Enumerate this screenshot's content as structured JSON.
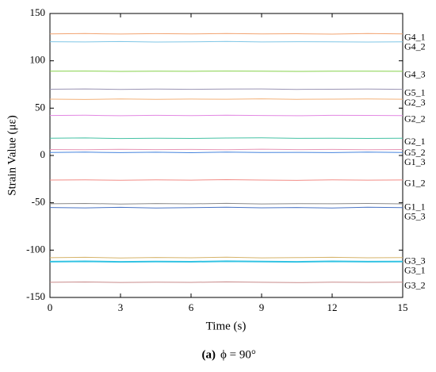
{
  "chart_data": {
    "type": "line",
    "xlabel": "Time (s)",
    "ylabel": "Strain Value (με)",
    "caption_label": "(a)",
    "caption_text": "ϕ = 90°",
    "x": [
      0,
      1.5,
      3,
      4.5,
      6,
      7.5,
      9,
      10.5,
      12,
      13.5,
      15
    ],
    "xlim": [
      0,
      15
    ],
    "xticks": [
      0,
      3,
      6,
      9,
      12,
      15
    ],
    "ylim": [
      -150,
      150
    ],
    "yticks": [
      -150,
      -100,
      -50,
      0,
      50,
      100,
      150
    ],
    "series": [
      {
        "name": "G4_1",
        "color": "#f2a472",
        "values": [
          128.5,
          128.8,
          128.3,
          128.7,
          128.4,
          128.9,
          128.5,
          128.6,
          128.2,
          128.8,
          128.5
        ]
      },
      {
        "name": "G4_2",
        "color": "#7fc6e6",
        "values": [
          120.2,
          119.9,
          120.3,
          119.8,
          120.1,
          120.4,
          119.9,
          120.2,
          120.0,
          119.8,
          120.1
        ]
      },
      {
        "name": "G4_3",
        "color": "#86d14a",
        "values": [
          89.0,
          89.2,
          88.8,
          89.1,
          88.9,
          89.2,
          89.0,
          88.8,
          89.1,
          89.0,
          88.9
        ]
      },
      {
        "name": "G5_1",
        "color": "#9a94b4",
        "values": [
          70.0,
          70.3,
          69.8,
          70.2,
          69.9,
          70.1,
          70.3,
          69.8,
          70.0,
          70.2,
          69.9
        ]
      },
      {
        "name": "G2_3",
        "color": "#f3b27a",
        "values": [
          59.5,
          59.2,
          59.7,
          59.3,
          59.6,
          59.4,
          59.8,
          59.3,
          59.5,
          59.7,
          59.4
        ]
      },
      {
        "name": "G2_2",
        "color": "#e388e3",
        "values": [
          42.2,
          42.5,
          42.0,
          42.4,
          42.1,
          42.6,
          42.2,
          42.0,
          42.4,
          42.3,
          42.1
        ]
      },
      {
        "name": "G2_1",
        "color": "#45c2a4",
        "values": [
          18.2,
          18.5,
          17.9,
          18.3,
          18.0,
          18.4,
          18.6,
          18.1,
          18.3,
          18.0,
          18.2
        ]
      },
      {
        "name": "G5_2",
        "color": "#e896b6",
        "values": [
          6.3,
          6.0,
          6.5,
          6.2,
          6.4,
          6.1,
          6.6,
          6.2,
          6.4,
          6.0,
          6.3
        ]
      },
      {
        "name": "G1_3",
        "color": "#4684de",
        "values": [
          3.2,
          3.5,
          3.0,
          3.4,
          2.9,
          3.6,
          3.1,
          3.3,
          3.0,
          3.5,
          3.2
        ]
      },
      {
        "name": "G1_2",
        "color": "#f28c86",
        "values": [
          -26.0,
          -25.7,
          -26.2,
          -25.8,
          -26.1,
          -25.6,
          -26.0,
          -26.3,
          -25.8,
          -26.1,
          -25.9
        ]
      },
      {
        "name": "G1_1",
        "color": "#8a8a8a",
        "values": [
          -51.0,
          -50.7,
          -51.3,
          -50.8,
          -51.1,
          -50.6,
          -51.2,
          -50.9,
          -51.0,
          -50.7,
          -51.1
        ]
      },
      {
        "name": "G5_3",
        "color": "#4a74c4",
        "values": [
          -55.0,
          -55.4,
          -54.8,
          -55.6,
          -55.1,
          -54.7,
          -55.3,
          -55.0,
          -55.5,
          -54.6,
          -55.1
        ]
      },
      {
        "name": "G3_3",
        "color": "#d6b46a",
        "values": [
          -108.0,
          -107.6,
          -108.3,
          -107.8,
          -108.1,
          -107.5,
          -108.2,
          -107.9,
          -107.6,
          -108.1,
          -107.9
        ]
      },
      {
        "name": "G3_1",
        "color": "#33c3e3",
        "values": [
          -112.2,
          -111.9,
          -112.4,
          -112.0,
          -112.3,
          -111.8,
          -112.1,
          -112.4,
          -111.9,
          -112.2,
          -112.0
        ]
      },
      {
        "name": "G3_2",
        "color": "#c88a8a",
        "values": [
          -134.0,
          -133.7,
          -134.2,
          -133.8,
          -134.1,
          -133.6,
          -134.0,
          -134.3,
          -133.8,
          -134.1,
          -133.9
        ]
      }
    ]
  }
}
